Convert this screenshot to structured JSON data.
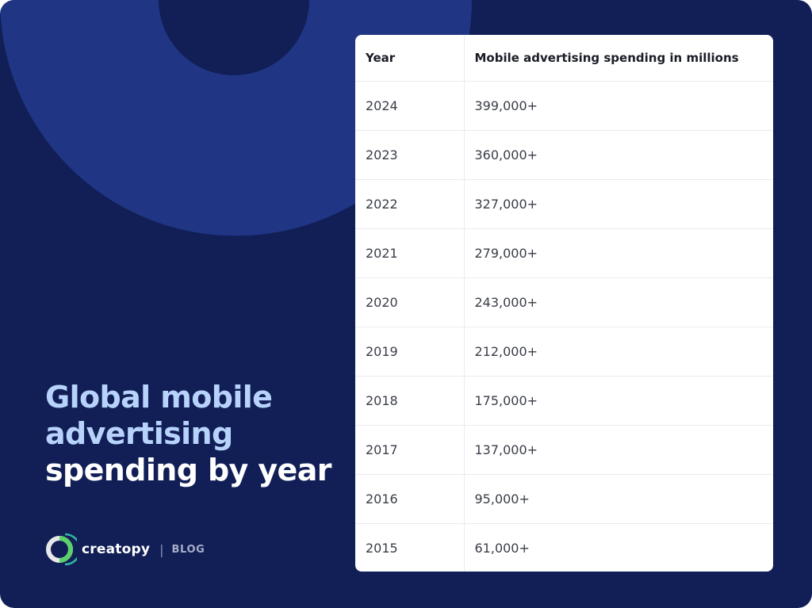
{
  "headline": {
    "line1": "Global mobile",
    "line2": "advertising",
    "line3": "spending by year"
  },
  "brand": {
    "name": "creatopy",
    "separator": "|",
    "section": "BLOG"
  },
  "table": {
    "columns": [
      "Year",
      "Mobile advertising spending in millions"
    ],
    "rows": [
      [
        "2024",
        "399,000+"
      ],
      [
        "2023",
        "360,000+"
      ],
      [
        "2022",
        "327,000+"
      ],
      [
        "2021",
        "279,000+"
      ],
      [
        "2020",
        "243,000+"
      ],
      [
        "2019",
        "212,000+"
      ],
      [
        "2018",
        "175,000+"
      ],
      [
        "2017",
        "137,000+"
      ],
      [
        "2016",
        "95,000+"
      ],
      [
        "2015",
        "61,000+"
      ]
    ]
  },
  "colors": {
    "background": "#111f56",
    "ring": "#203685",
    "headline_accent": "#b7d3fb",
    "headline_white": "#ffffff",
    "panel": "#ffffff"
  },
  "icons": {
    "logo": "creatopy-logo-icon"
  }
}
